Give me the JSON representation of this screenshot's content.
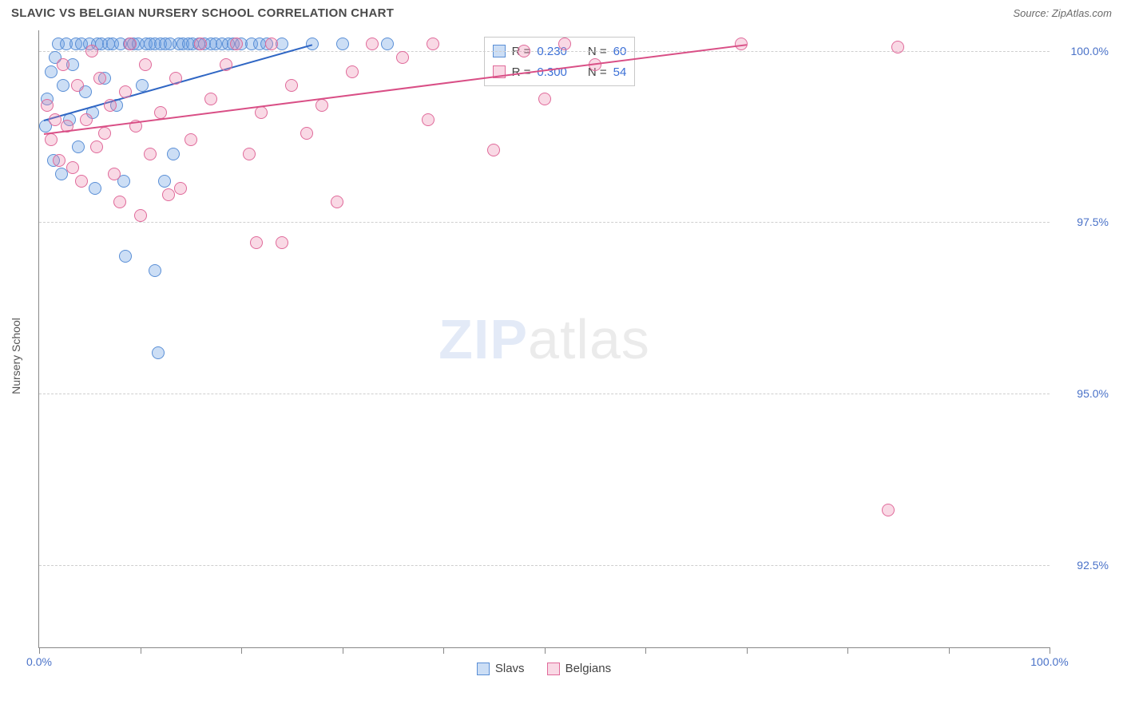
{
  "title": "SLAVIC VS BELGIAN NURSERY SCHOOL CORRELATION CHART",
  "source_label": "Source: ",
  "source_name": "ZipAtlas.com",
  "y_axis_title": "Nursery School",
  "watermark_zip": "ZIP",
  "watermark_atlas": "atlas",
  "chart": {
    "type": "scatter",
    "xlim": [
      0,
      100
    ],
    "ylim": [
      91.3,
      100.3
    ],
    "ytick_values": [
      92.5,
      95.0,
      97.5,
      100.0
    ],
    "ytick_labels": [
      "92.5%",
      "95.0%",
      "97.5%",
      "100.0%"
    ],
    "xtick_values": [
      0,
      10,
      20,
      30,
      40,
      50,
      60,
      70,
      80,
      90,
      100
    ],
    "xtick_labels_first": "0.0%",
    "xtick_labels_last": "100.0%",
    "grid_color": "#cfcfcf",
    "axis_color": "#888888",
    "background_color": "#ffffff",
    "point_radius": 8,
    "point_stroke_width": 1.2,
    "trend_line_width": 2.2,
    "series": [
      {
        "name": "Slavs",
        "fill_color": "rgba(110,160,225,0.35)",
        "stroke_color": "#5a8fd6",
        "trend_color": "#2f66c4",
        "trend": {
          "x1": 0.5,
          "y1": 99.0,
          "x2": 27,
          "y2": 100.1
        },
        "stats": {
          "r_label": "R  =",
          "r_value": "0.230",
          "n_label": "N =",
          "n_value": "60"
        },
        "points": [
          [
            0.6,
            98.9
          ],
          [
            0.8,
            99.3
          ],
          [
            1.2,
            99.7
          ],
          [
            1.4,
            98.4
          ],
          [
            1.6,
            99.9
          ],
          [
            1.9,
            100.1
          ],
          [
            2.2,
            98.2
          ],
          [
            2.4,
            99.5
          ],
          [
            2.7,
            100.1
          ],
          [
            3.0,
            99.0
          ],
          [
            3.3,
            99.8
          ],
          [
            3.6,
            100.1
          ],
          [
            3.9,
            98.6
          ],
          [
            4.2,
            100.1
          ],
          [
            4.6,
            99.4
          ],
          [
            5.0,
            100.1
          ],
          [
            5.3,
            99.1
          ],
          [
            5.5,
            98.0
          ],
          [
            5.8,
            100.1
          ],
          [
            6.2,
            100.1
          ],
          [
            6.5,
            99.6
          ],
          [
            6.9,
            100.1
          ],
          [
            7.3,
            100.1
          ],
          [
            7.7,
            99.2
          ],
          [
            8.1,
            100.1
          ],
          [
            8.4,
            98.1
          ],
          [
            8.9,
            100.1
          ],
          [
            9.3,
            100.1
          ],
          [
            9.8,
            100.1
          ],
          [
            10.2,
            99.5
          ],
          [
            10.6,
            100.1
          ],
          [
            11.0,
            100.1
          ],
          [
            11.5,
            100.1
          ],
          [
            12.0,
            100.1
          ],
          [
            12.4,
            98.1
          ],
          [
            12.5,
            100.1
          ],
          [
            13.0,
            100.1
          ],
          [
            13.3,
            98.5
          ],
          [
            13.8,
            100.1
          ],
          [
            14.2,
            100.1
          ],
          [
            14.8,
            100.1
          ],
          [
            15.2,
            100.1
          ],
          [
            15.8,
            100.1
          ],
          [
            16.4,
            100.1
          ],
          [
            17.0,
            100.1
          ],
          [
            17.5,
            100.1
          ],
          [
            18.1,
            100.1
          ],
          [
            18.7,
            100.1
          ],
          [
            19.2,
            100.1
          ],
          [
            20.0,
            100.1
          ],
          [
            21.0,
            100.1
          ],
          [
            21.8,
            100.1
          ],
          [
            22.5,
            100.1
          ],
          [
            24.0,
            100.1
          ],
          [
            27.0,
            100.1
          ],
          [
            30.0,
            100.1
          ],
          [
            34.5,
            100.1
          ],
          [
            8.5,
            97.0
          ],
          [
            11.5,
            96.8
          ],
          [
            11.8,
            95.6
          ]
        ]
      },
      {
        "name": "Belgians",
        "fill_color": "rgba(235,130,170,0.30)",
        "stroke_color": "#e06a9a",
        "trend_color": "#d94f86",
        "trend": {
          "x1": 0.5,
          "y1": 98.8,
          "x2": 70,
          "y2": 100.1
        },
        "stats": {
          "r_label": "R  =",
          "r_value": "0.300",
          "n_label": "N =",
          "n_value": "54"
        },
        "points": [
          [
            0.8,
            99.2
          ],
          [
            1.2,
            98.7
          ],
          [
            1.6,
            99.0
          ],
          [
            2.0,
            98.4
          ],
          [
            2.4,
            99.8
          ],
          [
            2.8,
            98.9
          ],
          [
            3.3,
            98.3
          ],
          [
            3.8,
            99.5
          ],
          [
            4.2,
            98.1
          ],
          [
            4.7,
            99.0
          ],
          [
            5.2,
            100.0
          ],
          [
            5.7,
            98.6
          ],
          [
            6.0,
            99.6
          ],
          [
            6.5,
            98.8
          ],
          [
            7.0,
            99.2
          ],
          [
            7.4,
            98.2
          ],
          [
            8.0,
            97.8
          ],
          [
            8.5,
            99.4
          ],
          [
            9.0,
            100.1
          ],
          [
            9.6,
            98.9
          ],
          [
            10.0,
            97.6
          ],
          [
            10.5,
            99.8
          ],
          [
            11.0,
            98.5
          ],
          [
            12.0,
            99.1
          ],
          [
            12.8,
            97.9
          ],
          [
            13.5,
            99.6
          ],
          [
            14.0,
            98.0
          ],
          [
            15.0,
            98.7
          ],
          [
            16.0,
            100.1
          ],
          [
            17.0,
            99.3
          ],
          [
            18.5,
            99.8
          ],
          [
            19.5,
            100.1
          ],
          [
            20.8,
            98.5
          ],
          [
            21.5,
            97.2
          ],
          [
            22.0,
            99.1
          ],
          [
            23.0,
            100.1
          ],
          [
            24.0,
            97.2
          ],
          [
            25.0,
            99.5
          ],
          [
            26.5,
            98.8
          ],
          [
            28.0,
            99.2
          ],
          [
            29.5,
            97.8
          ],
          [
            31.0,
            99.7
          ],
          [
            33.0,
            100.1
          ],
          [
            36.0,
            99.9
          ],
          [
            38.5,
            99.0
          ],
          [
            39.0,
            100.1
          ],
          [
            45.0,
            98.55
          ],
          [
            48.0,
            100.0
          ],
          [
            50.0,
            99.3
          ],
          [
            52.0,
            100.1
          ],
          [
            55.0,
            99.8
          ],
          [
            69.5,
            100.1
          ],
          [
            85.0,
            100.05
          ],
          [
            84.0,
            93.3
          ]
        ]
      }
    ]
  },
  "legend": {
    "slavs_label": "Slavs",
    "belgians_label": "Belgians"
  }
}
